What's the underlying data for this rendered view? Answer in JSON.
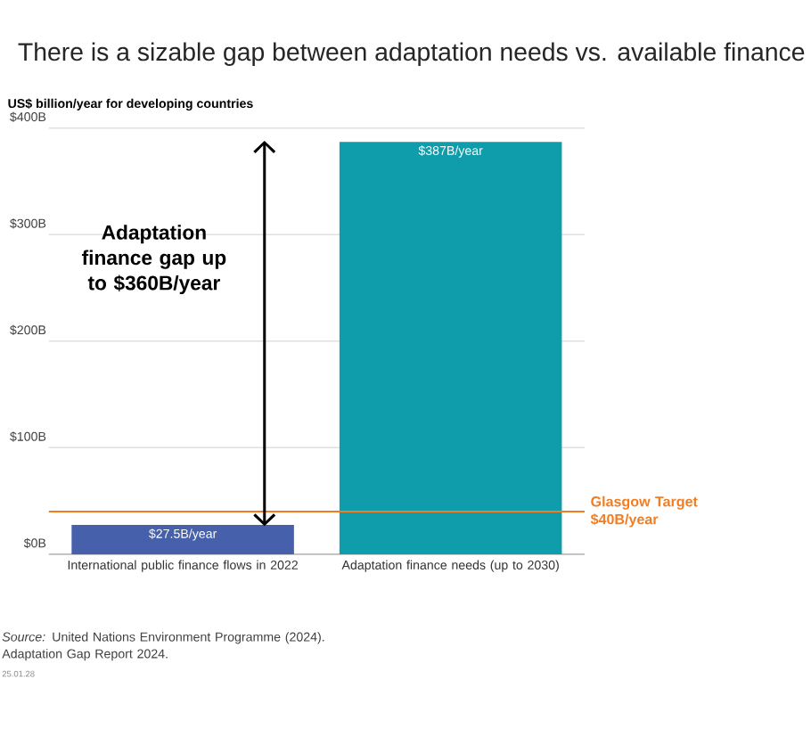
{
  "chart_data": {
    "type": "bar",
    "title": "There is a sizable gap between adaptation needs vs. available finance",
    "ylabel": "US$ billion/year for developing countries",
    "categories": [
      "International public finance flows in 2022",
      "Adaptation finance needs (up to 2030)"
    ],
    "values": [
      27.5,
      387
    ],
    "colors": [
      "#4660ac",
      "#0f9dac"
    ],
    "value_labels": [
      "$27.5B/year",
      "$387B/year"
    ],
    "ylim": [
      0,
      400
    ],
    "yticks": [
      {
        "value": 0,
        "label": "$0B"
      },
      {
        "value": 100,
        "label": "$100B"
      },
      {
        "value": 200,
        "label": "$200B"
      },
      {
        "value": 300,
        "label": "$300B"
      },
      {
        "value": 400,
        "label": "$400B"
      }
    ],
    "grid": "y",
    "ref_lines": [
      {
        "axis": "y",
        "value": 40,
        "label": "Glasgow Target $40B/year",
        "color": "#f47c20"
      }
    ],
    "annotations": [
      "Adaptation finance gap up to $360B/year",
      "*Source:* United Nations Environment Programme (2024). Adaptation Gap Report 2024.",
      "25.01.28"
    ]
  }
}
